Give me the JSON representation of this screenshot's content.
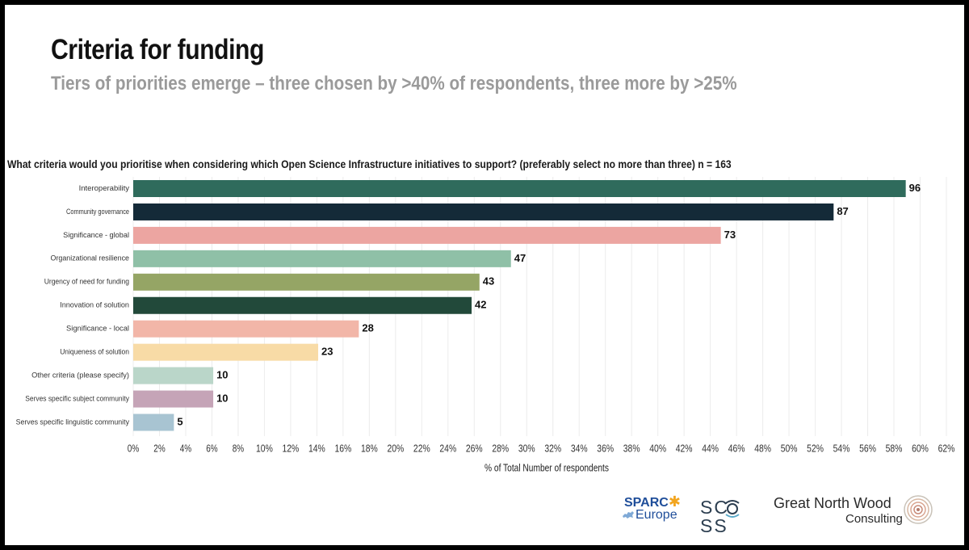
{
  "slide": {
    "title": "Criteria for funding",
    "subtitle": "Tiers of priorities emerge – three chosen by >40% of respondents, three more by >25%",
    "question": "What criteria would you prioritise when considering which Open Science Infrastructure initiatives to support? (preferably select no more than three) n = 163"
  },
  "chart_data": {
    "type": "bar",
    "orientation": "horizontal",
    "categories": [
      "Interoperability",
      "Community governance",
      "Significance - global",
      "Organizational resilience",
      "Urgency of need for funding",
      "Innovation of solution",
      "Significance - local",
      "Uniqueness of solution",
      "Other criteria (please specify)",
      "Serves specific subject community",
      "Serves specific linguistic community"
    ],
    "values": [
      96,
      87,
      73,
      47,
      43,
      42,
      28,
      23,
      10,
      10,
      5
    ],
    "percent_of_respondents": [
      58.9,
      53.4,
      44.8,
      28.8,
      26.4,
      25.8,
      17.2,
      14.1,
      6.1,
      6.1,
      3.1
    ],
    "data_labels": [
      "96",
      "87",
      "73",
      "47",
      "43",
      "42",
      "28",
      "23",
      "10",
      "10",
      "5"
    ],
    "colors": [
      "#2f6b5c",
      "#142a38",
      "#eca5a1",
      "#8fc0a7",
      "#95a565",
      "#22493a",
      "#f2b6a8",
      "#f8dba6",
      "#bad6c9",
      "#c5a4b7",
      "#a8c4d2"
    ],
    "xlabel": "% of Total Number of respondents",
    "ylabel": "",
    "xlim": [
      0,
      62
    ],
    "xtick_step": 2,
    "xtick_suffix": "%",
    "grid": true
  },
  "footer": {
    "sparc_name": "SPARC",
    "sparc_star": "✱",
    "sparc_region": "Europe",
    "scoss_text": "SC SS",
    "gnw_name": "Great North Wood",
    "gnw_sub": "Consulting"
  }
}
